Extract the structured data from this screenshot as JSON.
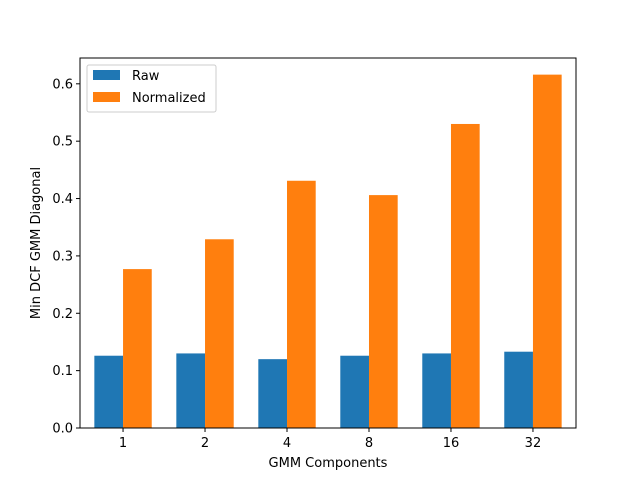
{
  "chart_data": {
    "type": "bar",
    "title": "",
    "xlabel": "GMM Components",
    "ylabel": "Min DCF GMM Diagonal",
    "categories": [
      "1",
      "2",
      "4",
      "8",
      "16",
      "32"
    ],
    "series": [
      {
        "name": "Raw",
        "color": "#1f77b4",
        "values": [
          0.126,
          0.13,
          0.12,
          0.126,
          0.13,
          0.133
        ]
      },
      {
        "name": "Normalized",
        "color": "#ff7f0e",
        "values": [
          0.277,
          0.329,
          0.431,
          0.406,
          0.53,
          0.616
        ]
      }
    ],
    "ylim": [
      0,
      0.645
    ],
    "yticks": [
      0.0,
      0.1,
      0.2,
      0.3,
      0.4,
      0.5,
      0.6
    ],
    "ytick_labels": [
      "0.0",
      "0.1",
      "0.2",
      "0.3",
      "0.4",
      "0.5",
      "0.6"
    ],
    "grid": false,
    "legend_position": "top-left"
  }
}
